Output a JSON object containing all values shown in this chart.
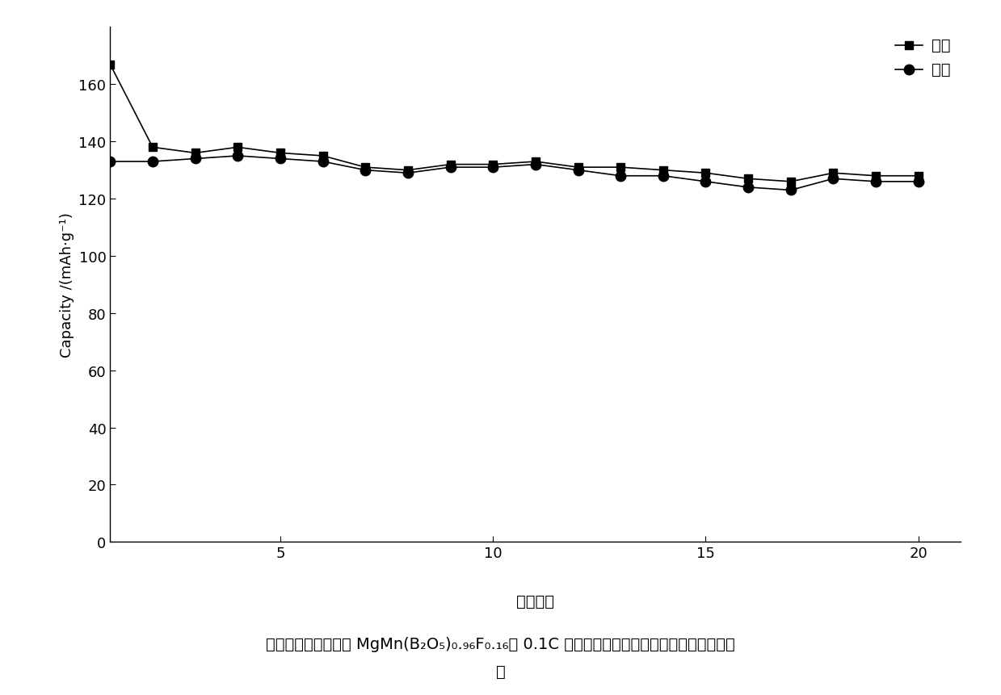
{
  "charge_x": [
    1,
    2,
    3,
    4,
    5,
    6,
    7,
    8,
    9,
    10,
    11,
    12,
    13,
    14,
    15,
    16,
    17,
    18,
    19,
    20
  ],
  "charge_y": [
    167,
    138,
    136,
    138,
    136,
    135,
    131,
    130,
    132,
    132,
    133,
    131,
    131,
    130,
    129,
    127,
    126,
    129,
    128,
    128
  ],
  "discharge_x": [
    1,
    2,
    3,
    4,
    5,
    6,
    7,
    8,
    9,
    10,
    11,
    12,
    13,
    14,
    15,
    16,
    17,
    18,
    19,
    20
  ],
  "discharge_y": [
    133,
    133,
    134,
    135,
    134,
    133,
    130,
    129,
    131,
    131,
    132,
    130,
    128,
    128,
    126,
    124,
    123,
    127,
    126,
    126
  ],
  "ylabel": "Capacity /(mAh·g⁻¹)",
  "xlabel": "循环次数",
  "legend_charge": "充电",
  "legend_discharge": "放电",
  "ylim": [
    0,
    180
  ],
  "xlim_left": 1,
  "xlim_right": 21,
  "yticks": [
    0,
    20,
    40,
    60,
    80,
    100,
    120,
    140,
    160
  ],
  "xticks": [
    5,
    10,
    15,
    20
  ],
  "line_color": "#000000",
  "caption_line1": "镁离子电池正极材料 MgMn(B₂O₅)₀.₉₆F₀.₁₆在 0.1C 的充放电电流下前二十周的充放电容量曲",
  "caption_line2": "线",
  "figsize": [
    12.39,
    8.62
  ],
  "dpi": 100
}
